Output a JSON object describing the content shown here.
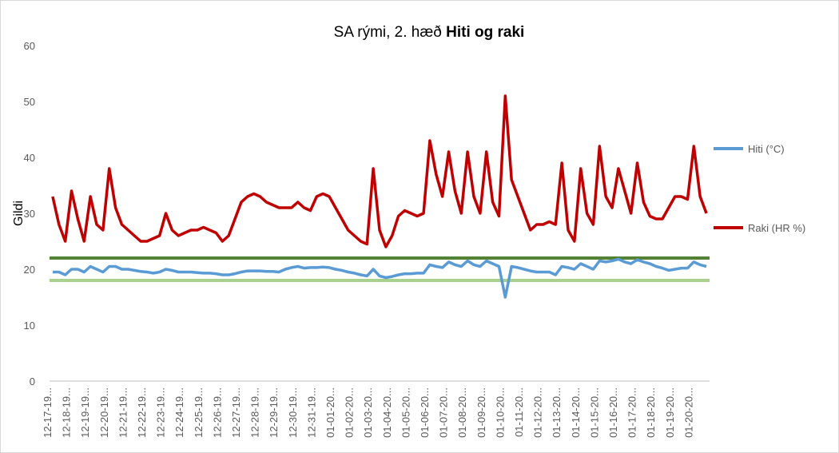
{
  "chart_data": {
    "type": "line",
    "title": "SA rými, 2. hæð",
    "title_bold": "Hiti og raki",
    "y_label": "Gildi",
    "categories": [
      "12-17-19...",
      null,
      null,
      "12-18-19...",
      null,
      null,
      "12-19-19...",
      null,
      null,
      "12-20-19...",
      null,
      null,
      "12-21-19...",
      null,
      null,
      "12-22-19...",
      null,
      null,
      "12-23-19...",
      null,
      null,
      "12-24-19...",
      null,
      null,
      "12-25-19...",
      null,
      null,
      "12-26-19...",
      null,
      null,
      "12-27-19...",
      null,
      null,
      "12-28-19...",
      null,
      null,
      "12-29-19...",
      null,
      null,
      "12-30-19...",
      null,
      null,
      "12-31-19...",
      null,
      null,
      "01-01-20...",
      null,
      null,
      "01-02-20...",
      null,
      null,
      "01-03-20...",
      null,
      null,
      "01-04-20...",
      null,
      null,
      "01-05-20...",
      null,
      null,
      "01-06-20...",
      null,
      null,
      "01-07-20...",
      null,
      null,
      "01-08-20...",
      null,
      null,
      "01-09-20...",
      null,
      null,
      "01-10-20...",
      null,
      null,
      "01-11-20...",
      null,
      null,
      "01-12-20...",
      null,
      null,
      "01-13-20...",
      null,
      null,
      "01-14-20...",
      null,
      null,
      "01-15-20...",
      null,
      null,
      "01-16-20...",
      null,
      null,
      "01-17-20...",
      null,
      null,
      "01-18-20...",
      null,
      null,
      "01-19-20...",
      null,
      null,
      "01-20-20...",
      null,
      null
    ],
    "series": [
      {
        "name": "Hiti (°C)",
        "color": "#5b9bd5",
        "values": [
          19.5,
          19.5,
          19,
          20,
          20,
          19.5,
          20.5,
          20,
          19.5,
          20.5,
          20.5,
          20,
          20,
          19.8,
          19.6,
          19.5,
          19.3,
          19.5,
          20,
          19.8,
          19.5,
          19.5,
          19.5,
          19.4,
          19.3,
          19.3,
          19.2,
          19,
          19,
          19.2,
          19.5,
          19.7,
          19.7,
          19.7,
          19.6,
          19.6,
          19.5,
          20,
          20.3,
          20.5,
          20.2,
          20.3,
          20.3,
          20.4,
          20.3,
          20,
          19.8,
          19.5,
          19.3,
          19,
          18.8,
          20,
          18.8,
          18.5,
          18.7,
          19,
          19.2,
          19.2,
          19.3,
          19.3,
          20.8,
          20.5,
          20.3,
          21.3,
          20.8,
          20.5,
          21.5,
          20.8,
          20.5,
          21.5,
          21,
          20.5,
          15,
          20.5,
          20.3,
          20,
          19.7,
          19.5,
          19.5,
          19.5,
          19,
          20.5,
          20.3,
          20,
          21,
          20.5,
          20,
          21.5,
          21.3,
          21.5,
          21.8,
          21.3,
          21,
          21.7,
          21.3,
          21,
          20.5,
          20.2,
          19.8,
          20,
          20.2,
          20.2,
          21.3,
          20.8,
          20.5
        ]
      },
      {
        "name": "Raki (HR %)",
        "color": "#c00000",
        "values": [
          33,
          28,
          25,
          34,
          29,
          25,
          33,
          28,
          27,
          38,
          31,
          28,
          27,
          26,
          25,
          25,
          25.5,
          26,
          30,
          27,
          26,
          26.5,
          27,
          27,
          27.5,
          27,
          26.5,
          25,
          26,
          29,
          32,
          33,
          33.5,
          33,
          32,
          31.5,
          31,
          31,
          31,
          32,
          31,
          30.5,
          33,
          33.5,
          33,
          31,
          29,
          27,
          26,
          25,
          24.5,
          38,
          27,
          24,
          26,
          29.5,
          30.5,
          30,
          29.5,
          30,
          43,
          37,
          33,
          41,
          34,
          30,
          41,
          33,
          30,
          41,
          32,
          29.5,
          51,
          36,
          33,
          30,
          27,
          28,
          28,
          28.5,
          28,
          39,
          27,
          25,
          38,
          30,
          28,
          42,
          33,
          31,
          38,
          34,
          30,
          39,
          32,
          29.5,
          29,
          29,
          31,
          33,
          33,
          32.5,
          42,
          33,
          30
        ]
      }
    ],
    "reference_lines": [
      {
        "value": 22,
        "color": "#548235"
      },
      {
        "value": 18,
        "color": "#a9d18e"
      }
    ],
    "ylim": [
      0,
      60
    ],
    "yticks": [
      0,
      10,
      20,
      30,
      40,
      50,
      60
    ],
    "grid": false,
    "legend": "right"
  }
}
